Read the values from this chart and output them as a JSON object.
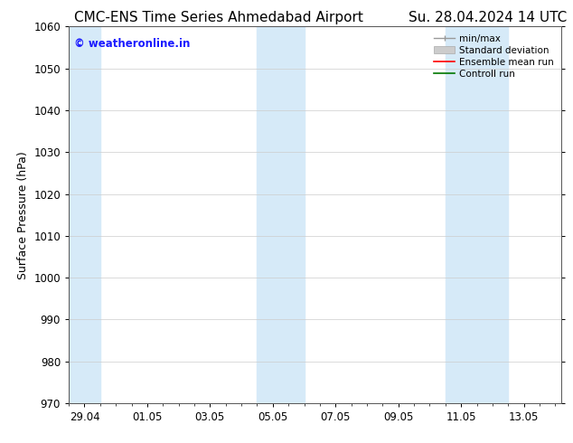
{
  "title_left": "CMC-ENS Time Series Ahmedabad Airport",
  "title_right": "Su. 28.04.2024 14 UTC",
  "ylabel": "Surface Pressure (hPa)",
  "ylim": [
    970,
    1060
  ],
  "yticks": [
    970,
    980,
    990,
    1000,
    1010,
    1020,
    1030,
    1040,
    1050,
    1060
  ],
  "xtick_labels": [
    "29.04",
    "01.05",
    "03.05",
    "05.05",
    "07.05",
    "09.05",
    "11.05",
    "13.05"
  ],
  "xtick_positions": [
    0,
    2,
    4,
    6,
    8,
    10,
    12,
    14
  ],
  "xlim": [
    -0.5,
    15.2
  ],
  "shaded_bands": [
    {
      "x_start": -0.5,
      "x_end": 0.5,
      "color": "#d6eaf8"
    },
    {
      "x_start": 5.5,
      "x_end": 7.0,
      "color": "#d6eaf8"
    },
    {
      "x_start": 11.5,
      "x_end": 13.5,
      "color": "#d6eaf8"
    }
  ],
  "watermark_text": "© weatheronline.in",
  "watermark_color": "#1a1aff",
  "background_color": "#ffffff",
  "grid_color": "#cccccc",
  "title_fontsize": 11,
  "axis_fontsize": 9,
  "tick_fontsize": 8.5,
  "legend_fontsize": 7.5
}
